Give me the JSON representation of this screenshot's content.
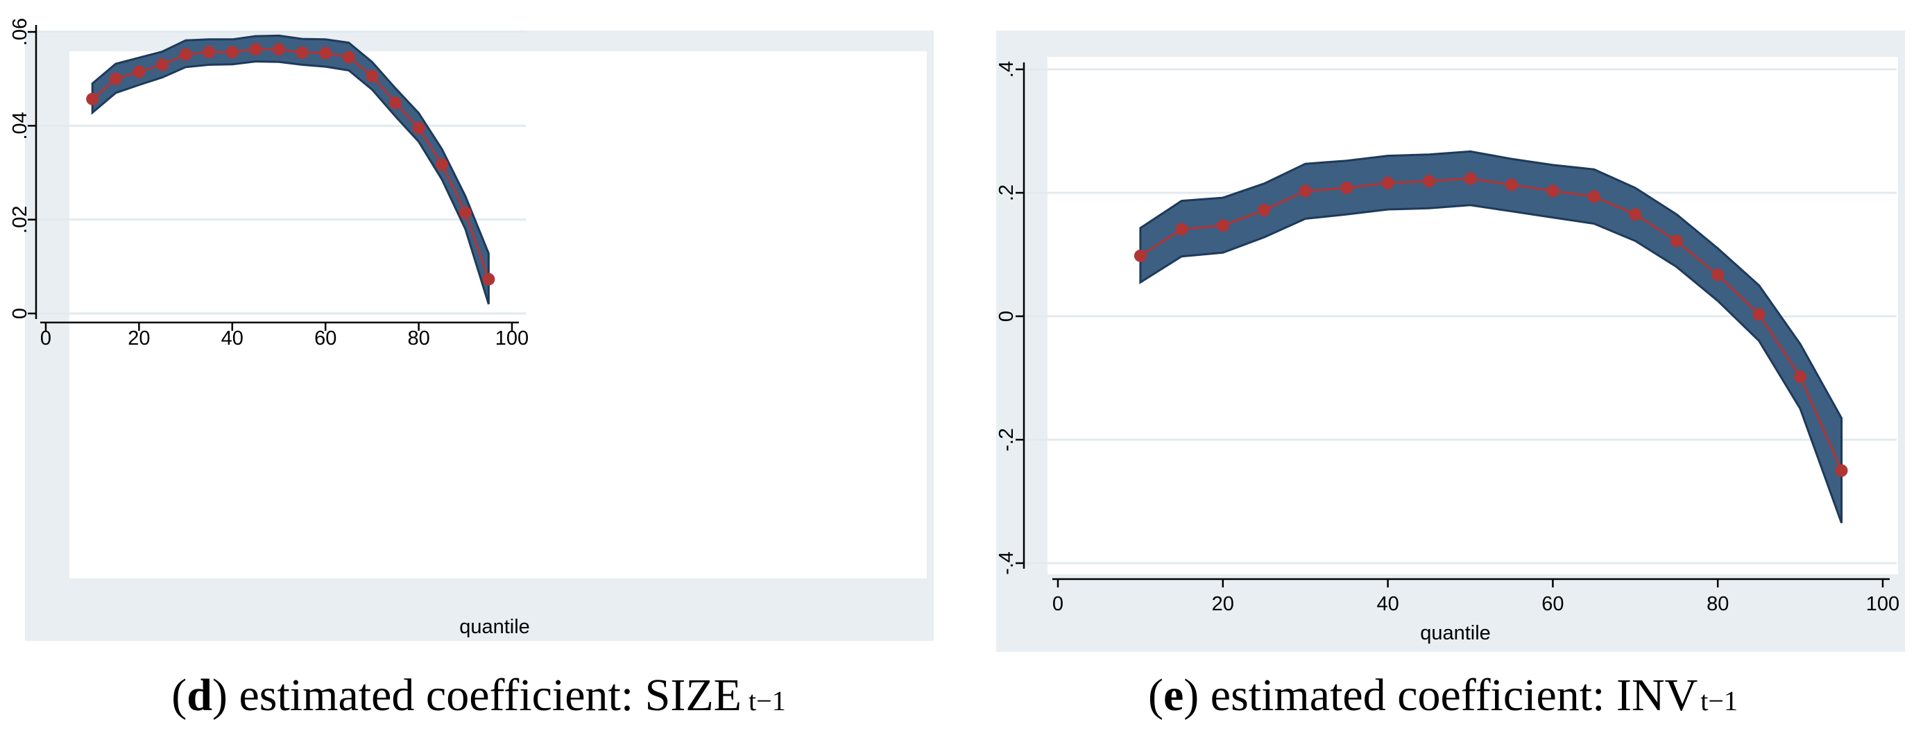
{
  "chart_data": [
    {
      "id": "d",
      "type": "line",
      "caption": {
        "letter": "d",
        "text": "estimated coefficient: SIZE",
        "subscript": "t−1"
      },
      "xlabel": "quantile",
      "ylabel": "",
      "xlim": [
        0,
        100
      ],
      "ylim": [
        0,
        0.06
      ],
      "xticks": [
        0,
        20,
        40,
        60,
        80,
        100
      ],
      "xtick_labels": [
        "0",
        "20",
        "40",
        "60",
        "80",
        "100"
      ],
      "yticks": [
        0,
        0.02,
        0.04,
        0.06
      ],
      "ytick_labels": [
        "0",
        ".02",
        ".04",
        ".06"
      ],
      "grid": true,
      "x": [
        10,
        15,
        20,
        25,
        30,
        35,
        40,
        45,
        50,
        55,
        60,
        65,
        70,
        75,
        80,
        85,
        90,
        95
      ],
      "series": [
        {
          "name": "estimated coefficient",
          "values": [
            0.0457,
            0.05,
            0.0515,
            0.053,
            0.0552,
            0.0557,
            0.0557,
            0.0563,
            0.0563,
            0.0556,
            0.0555,
            0.0546,
            0.0506,
            0.0449,
            0.0395,
            0.0317,
            0.0215,
            0.0073
          ]
        },
        {
          "name": "upper confidence bound",
          "values": [
            0.049,
            0.0532,
            0.0545,
            0.0558,
            0.0582,
            0.0584,
            0.0584,
            0.0591,
            0.0592,
            0.0585,
            0.0584,
            0.0577,
            0.0536,
            0.048,
            0.0427,
            0.035,
            0.025,
            0.0128
          ]
        },
        {
          "name": "lower confidence bound",
          "values": [
            0.0428,
            0.047,
            0.0487,
            0.0503,
            0.0525,
            0.053,
            0.0531,
            0.0537,
            0.0536,
            0.053,
            0.0526,
            0.0518,
            0.0477,
            0.042,
            0.0366,
            0.0285,
            0.018,
            0.002
          ]
        }
      ]
    },
    {
      "id": "e",
      "type": "line",
      "caption": {
        "letter": "e",
        "text": "estimated coefficient: INV",
        "subscript": "t−1"
      },
      "xlabel": "quantile",
      "ylabel": "",
      "xlim": [
        0,
        100
      ],
      "ylim": [
        -0.4,
        0.4
      ],
      "xticks": [
        0,
        20,
        40,
        60,
        80,
        100
      ],
      "xtick_labels": [
        "0",
        "20",
        "40",
        "60",
        "80",
        "100"
      ],
      "yticks": [
        -0.4,
        -0.2,
        0,
        0.2,
        0.4
      ],
      "ytick_labels": [
        "-.4",
        "-.2",
        "0",
        ".2",
        ".4"
      ],
      "grid": true,
      "x": [
        10,
        15,
        20,
        25,
        30,
        35,
        40,
        45,
        50,
        55,
        60,
        65,
        70,
        75,
        80,
        85,
        90,
        95
      ],
      "series": [
        {
          "name": "estimated coefficient",
          "values": [
            0.098,
            0.141,
            0.147,
            0.172,
            0.203,
            0.208,
            0.216,
            0.219,
            0.223,
            0.213,
            0.203,
            0.194,
            0.165,
            0.122,
            0.067,
            0.003,
            -0.098,
            -0.25
          ]
        },
        {
          "name": "upper confidence bound",
          "values": [
            0.143,
            0.187,
            0.192,
            0.215,
            0.247,
            0.252,
            0.26,
            0.262,
            0.267,
            0.255,
            0.245,
            0.238,
            0.208,
            0.165,
            0.11,
            0.05,
            -0.045,
            -0.165
          ]
        },
        {
          "name": "lower confidence bound",
          "values": [
            0.055,
            0.097,
            0.103,
            0.128,
            0.158,
            0.165,
            0.173,
            0.175,
            0.18,
            0.17,
            0.16,
            0.15,
            0.122,
            0.08,
            0.025,
            -0.04,
            -0.15,
            -0.335
          ]
        }
      ]
    }
  ]
}
